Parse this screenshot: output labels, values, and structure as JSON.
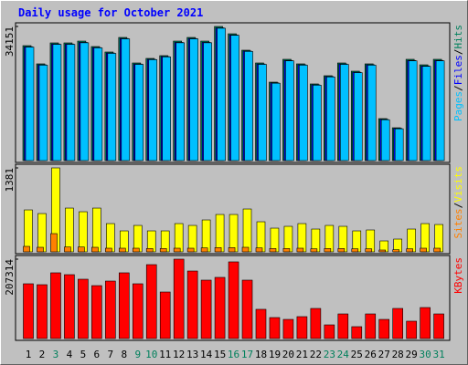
{
  "chart_data": [
    {
      "type": "bar",
      "title": "Daily usage for October 2021",
      "legend_separator": "/",
      "ylim": [
        0,
        34151
      ],
      "yticks": [
        34151
      ],
      "series": [
        {
          "name": "Hits",
          "color": "#00805c",
          "values": [
            29270,
            24630,
            29970,
            29970,
            30430,
            29040,
            27650,
            31360,
            24860,
            26020,
            26720,
            30430,
            31360,
            30430,
            34151,
            32290,
            28110,
            24860,
            19980,
            25790,
            24630,
            19520,
            21610,
            24860,
            22770,
            24630,
            10690,
            8360,
            25790,
            24390,
            25790
          ]
        },
        {
          "name": "Files",
          "color": "#0000ff",
          "values": [
            29000,
            24400,
            29700,
            29700,
            30100,
            28800,
            27400,
            31100,
            24600,
            25800,
            26500,
            30100,
            31100,
            30100,
            33800,
            32000,
            27900,
            24600,
            19800,
            25500,
            24400,
            19300,
            21400,
            24600,
            22500,
            24400,
            10500,
            8200,
            25500,
            24100,
            25500
          ]
        },
        {
          "name": "Pages",
          "color": "#00c0ff",
          "values": [
            28900,
            24300,
            29600,
            29600,
            30000,
            28700,
            27300,
            31000,
            24500,
            25700,
            26400,
            30000,
            31000,
            30000,
            33700,
            31900,
            27800,
            24500,
            19700,
            25400,
            24300,
            19200,
            21300,
            24500,
            22400,
            24300,
            10400,
            8100,
            25400,
            24000,
            25400
          ]
        }
      ]
    },
    {
      "type": "bar",
      "legend_separator": "/",
      "ylim": [
        0,
        1381
      ],
      "yticks": [
        1381
      ],
      "series": [
        {
          "name": "Visits",
          "color": "#ffff00",
          "values": [
            690,
            630,
            1381,
            720,
            660,
            720,
            465,
            345,
            435,
            345,
            345,
            465,
            435,
            525,
            615,
            615,
            705,
            495,
            390,
            420,
            465,
            375,
            435,
            420,
            345,
            360,
            180,
            210,
            375,
            465,
            450
          ]
        },
        {
          "name": "Sites",
          "color": "#ff8000",
          "values": [
            90,
            75,
            300,
            80,
            80,
            75,
            60,
            60,
            60,
            55,
            55,
            60,
            60,
            65,
            70,
            70,
            75,
            65,
            55,
            55,
            60,
            50,
            55,
            55,
            50,
            50,
            30,
            35,
            50,
            60,
            60
          ]
        }
      ]
    },
    {
      "type": "bar",
      "categories": [
        "1",
        "2",
        "3",
        "4",
        "5",
        "6",
        "7",
        "8",
        "9",
        "10",
        "11",
        "12",
        "13",
        "14",
        "15",
        "16",
        "17",
        "18",
        "19",
        "20",
        "21",
        "22",
        "23",
        "24",
        "25",
        "26",
        "27",
        "28",
        "29",
        "30",
        "31"
      ],
      "category_colors": [
        "#000000",
        "#000000",
        "#00805c",
        "#000000",
        "#000000",
        "#000000",
        "#000000",
        "#000000",
        "#00805c",
        "#00805c",
        "#000000",
        "#000000",
        "#000000",
        "#000000",
        "#000000",
        "#00805c",
        "#00805c",
        "#000000",
        "#000000",
        "#000000",
        "#000000",
        "#000000",
        "#00805c",
        "#00805c",
        "#000000",
        "#000000",
        "#000000",
        "#000000",
        "#000000",
        "#00805c",
        "#00805c"
      ],
      "ylim": [
        0,
        207314
      ],
      "yticks": [
        207314
      ],
      "series": [
        {
          "name": "KBytes",
          "color": "#ff0000",
          "values": [
            143000,
            140600,
            171600,
            166800,
            154900,
            138200,
            150100,
            171600,
            143000,
            193000,
            121500,
            207314,
            176300,
            152500,
            159700,
            200200,
            152500,
            76300,
            54800,
            50000,
            57200,
            78600,
            35700,
            64300,
            31000,
            64300,
            50000,
            78600,
            45300,
            81000,
            64300
          ]
        }
      ]
    }
  ]
}
